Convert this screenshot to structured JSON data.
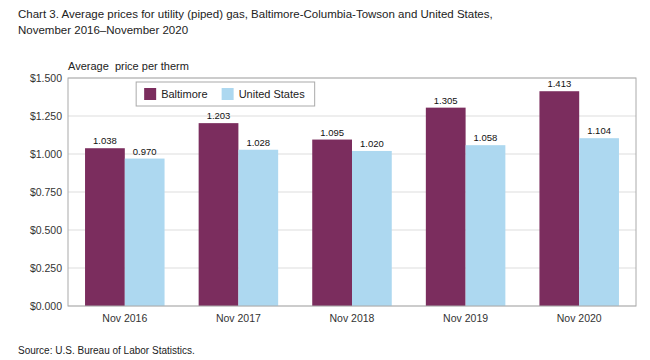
{
  "chart_data": {
    "type": "bar",
    "title": "Chart 3. Average prices for utility (piped) gas, Baltimore-Columbia-Towson and United States,",
    "subtitle": "November 2016–November 2020",
    "y_label": "Average  price per therm",
    "source": "Source: U.S. Bureau of Labor Statistics.",
    "categories": [
      "Nov 2016",
      "Nov 2017",
      "Nov 2018",
      "Nov 2019",
      "Nov 2020"
    ],
    "series": [
      {
        "name": "Baltimore",
        "color": "#7B2D5E",
        "values": [
          1.038,
          1.203,
          1.095,
          1.305,
          1.413
        ],
        "value_labels": [
          "1.038",
          "1.203",
          "1.095",
          "1.305",
          "1.413"
        ]
      },
      {
        "name": "United States",
        "color": "#ADD8F0",
        "values": [
          0.97,
          1.028,
          1.02,
          1.058,
          1.104
        ],
        "value_labels": [
          "0.970",
          "1.028",
          "1.020",
          "1.058",
          "1.104"
        ]
      }
    ],
    "ylim": [
      0,
      1.5
    ],
    "yticks": [
      {
        "value": 0.0,
        "label": "$0.000"
      },
      {
        "value": 0.25,
        "label": "$0.250"
      },
      {
        "value": 0.5,
        "label": "$0.500"
      },
      {
        "value": 0.75,
        "label": "$0.750"
      },
      {
        "value": 1.0,
        "label": "$1.000"
      },
      {
        "value": 1.25,
        "label": "$1.250"
      },
      {
        "value": 1.5,
        "label": "$1.500"
      }
    ],
    "grid": true,
    "legend": "top-left",
    "data_labels": true
  }
}
